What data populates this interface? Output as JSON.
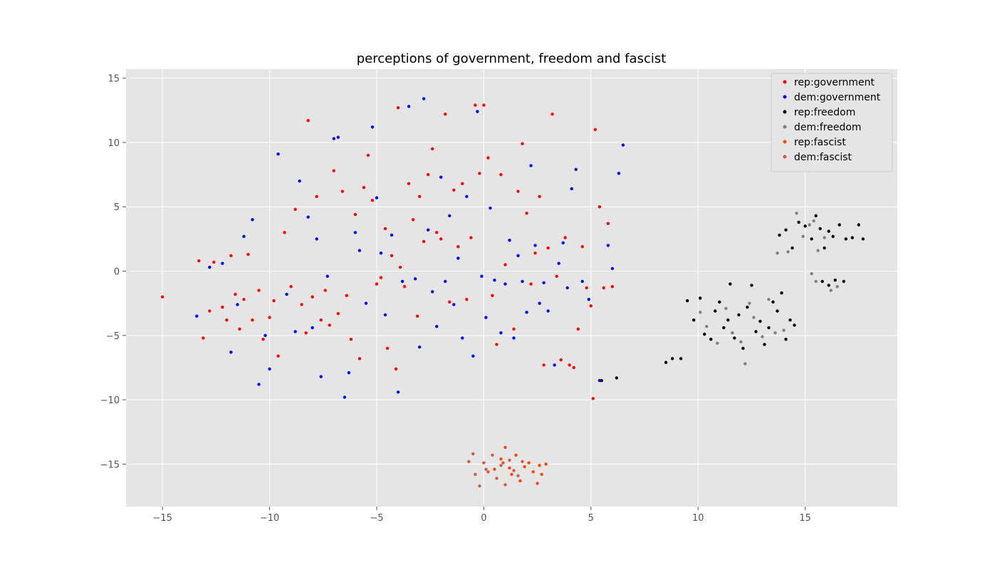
{
  "chart_data": {
    "type": "scatter",
    "title": "perceptions of government, freedom and fascist",
    "xlabel": "",
    "ylabel": "",
    "xlim": [
      -16.7,
      19.3
    ],
    "ylim": [
      -18.3,
      15.7
    ],
    "xticks": [
      -15,
      -10,
      -5,
      0,
      5,
      10,
      15
    ],
    "yticks": [
      -15,
      -10,
      -5,
      0,
      5,
      10,
      15
    ],
    "grid": true,
    "legend_position": "top-right",
    "series": [
      {
        "name": "rep:government",
        "color": "#ff0000",
        "points": [
          [
            -15,
            -2
          ],
          [
            -13.3,
            0.8
          ],
          [
            -13.1,
            -5.2
          ],
          [
            -12.8,
            -3.1
          ],
          [
            -12.6,
            0.7
          ],
          [
            -12.2,
            -2.8
          ],
          [
            -12,
            -3.8
          ],
          [
            -11.8,
            1.2
          ],
          [
            -11.6,
            -1.8
          ],
          [
            -11.4,
            -4.5
          ],
          [
            -11.2,
            -2.2
          ],
          [
            -11,
            1.3
          ],
          [
            -10.8,
            -3.8
          ],
          [
            -10.5,
            -1.5
          ],
          [
            -10.3,
            -5.3
          ],
          [
            -10,
            -3.6
          ],
          [
            -9.8,
            -2.3
          ],
          [
            -9.6,
            -6.6
          ],
          [
            -9.3,
            3
          ],
          [
            -9,
            -1.2
          ],
          [
            -8.8,
            4.8
          ],
          [
            -8.5,
            -2.6
          ],
          [
            -8.3,
            -4.8
          ],
          [
            -8.2,
            11.7
          ],
          [
            -8,
            -2
          ],
          [
            -7.8,
            5.8
          ],
          [
            -7.6,
            -3.8
          ],
          [
            -7.4,
            -1.5
          ],
          [
            -7.2,
            -4.2
          ],
          [
            -7,
            7.8
          ],
          [
            -6.8,
            -3.3
          ],
          [
            -6.6,
            6.2
          ],
          [
            -6.4,
            -1.9
          ],
          [
            -6.2,
            -5.3
          ],
          [
            -6,
            4.4
          ],
          [
            -5.8,
            -6.8
          ],
          [
            -5.6,
            6.5
          ],
          [
            -5.4,
            9
          ],
          [
            -5.2,
            5.5
          ],
          [
            -5,
            -1
          ],
          [
            -4.8,
            -0.5
          ],
          [
            -4.6,
            3.3
          ],
          [
            -4.5,
            -6
          ],
          [
            -4.3,
            1.2
          ],
          [
            -4.1,
            -7.6
          ],
          [
            -4,
            12.7
          ],
          [
            -3.9,
            0.3
          ],
          [
            -3.7,
            -1.2
          ],
          [
            -3.5,
            6.8
          ],
          [
            -3.3,
            4
          ],
          [
            -3.1,
            -3.5
          ],
          [
            -3,
            5.8
          ],
          [
            -2.8,
            2.3
          ],
          [
            -2.6,
            7.5
          ],
          [
            -2.4,
            9.5
          ],
          [
            -2.2,
            3
          ],
          [
            -2,
            2.5
          ],
          [
            -1.8,
            12.2
          ],
          [
            -1.6,
            -2.4
          ],
          [
            -1.4,
            6.3
          ],
          [
            -1.2,
            1.9
          ],
          [
            -1,
            6.8
          ],
          [
            -0.8,
            -2.2
          ],
          [
            -0.6,
            2.6
          ],
          [
            -0.4,
            12.9
          ],
          [
            -0.2,
            7.6
          ],
          [
            0,
            12.9
          ],
          [
            0.2,
            8.8
          ],
          [
            0.4,
            -1.9
          ],
          [
            0.6,
            -5.7
          ],
          [
            0.8,
            7.5
          ],
          [
            1,
            0.5
          ],
          [
            1.2,
            2.4
          ],
          [
            1.4,
            -4.5
          ],
          [
            1.6,
            6.2
          ],
          [
            1.8,
            9.9
          ],
          [
            2,
            4.5
          ],
          [
            2.2,
            -1
          ],
          [
            2.4,
            1.4
          ],
          [
            2.6,
            5.8
          ],
          [
            2.8,
            -7.3
          ],
          [
            3,
            1.8
          ],
          [
            3.2,
            12.2
          ],
          [
            3.4,
            -0.4
          ],
          [
            3.6,
            -6.9
          ],
          [
            3.8,
            2.6
          ],
          [
            4,
            -7.3
          ],
          [
            4.2,
            -7.5
          ],
          [
            4.4,
            -4.5
          ],
          [
            4.6,
            1.9
          ],
          [
            4.8,
            -1.3
          ],
          [
            5,
            -2.7
          ],
          [
            5.2,
            11
          ],
          [
            5.4,
            5
          ],
          [
            5.6,
            -1.3
          ],
          [
            5.8,
            3.7
          ],
          [
            6,
            -1.2
          ],
          [
            5.1,
            -9.9
          ]
        ]
      },
      {
        "name": "dem:government",
        "color": "#0000ff",
        "points": [
          [
            -13.4,
            -3.5
          ],
          [
            -12.8,
            0.3
          ],
          [
            -12.2,
            0.6
          ],
          [
            -11.8,
            -6.3
          ],
          [
            -11.5,
            -2.6
          ],
          [
            -11.2,
            2.7
          ],
          [
            -10.8,
            4
          ],
          [
            -10.5,
            -8.8
          ],
          [
            -10.2,
            -5
          ],
          [
            -10,
            -7.6
          ],
          [
            -9.6,
            9.1
          ],
          [
            -9.2,
            -1.8
          ],
          [
            -8.8,
            -4.7
          ],
          [
            -8.6,
            7
          ],
          [
            -8.2,
            4.2
          ],
          [
            -8,
            -4.4
          ],
          [
            -7.8,
            2.5
          ],
          [
            -7.6,
            -8.2
          ],
          [
            -7.3,
            -0.4
          ],
          [
            -7,
            10.3
          ],
          [
            -6.8,
            10.4
          ],
          [
            -6.5,
            -9.8
          ],
          [
            -6.3,
            -7.9
          ],
          [
            -6,
            3
          ],
          [
            -5.8,
            1.6
          ],
          [
            -5.5,
            -2.5
          ],
          [
            -5.2,
            11.2
          ],
          [
            -5,
            5.7
          ],
          [
            -4.8,
            1.4
          ],
          [
            -4.6,
            -3.4
          ],
          [
            -4.3,
            2.8
          ],
          [
            -4,
            -9.4
          ],
          [
            -3.8,
            -0.8
          ],
          [
            -3.5,
            12.8
          ],
          [
            -3.2,
            -0.6
          ],
          [
            -3,
            -5.9
          ],
          [
            -2.8,
            13.4
          ],
          [
            -2.6,
            3.2
          ],
          [
            -2.4,
            -1.6
          ],
          [
            -2.2,
            -4.3
          ],
          [
            -2,
            7.3
          ],
          [
            -1.8,
            -0.8
          ],
          [
            -1.6,
            4.3
          ],
          [
            -1.4,
            -2.6
          ],
          [
            -1.2,
            1
          ],
          [
            -1,
            -5.2
          ],
          [
            -0.8,
            5.8
          ],
          [
            -0.5,
            -6.6
          ],
          [
            -0.3,
            12.4
          ],
          [
            -0.1,
            -0.4
          ],
          [
            0.1,
            -3.6
          ],
          [
            0.3,
            4.9
          ],
          [
            0.5,
            -0.7
          ],
          [
            0.8,
            -4.8
          ],
          [
            1,
            -1
          ],
          [
            1.2,
            2.4
          ],
          [
            1.4,
            -5.2
          ],
          [
            1.6,
            1.2
          ],
          [
            1.8,
            -0.8
          ],
          [
            2,
            -3.2
          ],
          [
            2.2,
            8.2
          ],
          [
            2.4,
            2
          ],
          [
            2.6,
            -2.5
          ],
          [
            2.8,
            -0.9
          ],
          [
            3,
            -3.1
          ],
          [
            3.3,
            -7.3
          ],
          [
            3.5,
            0.6
          ],
          [
            3.7,
            2.2
          ],
          [
            3.9,
            -1.3
          ],
          [
            4.1,
            6.4
          ],
          [
            4.3,
            7.9
          ],
          [
            4.6,
            -0.8
          ],
          [
            4.9,
            -2.2
          ],
          [
            5.4,
            -8.5
          ],
          [
            5.8,
            2
          ],
          [
            6,
            0.2
          ],
          [
            6.3,
            7.6
          ],
          [
            6.5,
            9.8
          ]
        ]
      },
      {
        "name": "rep:freedom",
        "color": "#000000",
        "points": [
          [
            6.2,
            -8.3
          ],
          [
            5.5,
            -8.5
          ],
          [
            8.5,
            -7.1
          ],
          [
            8.8,
            -6.8
          ],
          [
            9.2,
            -6.8
          ],
          [
            9.5,
            -2.3
          ],
          [
            9.8,
            -3.8
          ],
          [
            10.1,
            -2.1
          ],
          [
            10.3,
            -4.9
          ],
          [
            10.6,
            -5.3
          ],
          [
            10.8,
            -3.1
          ],
          [
            11,
            -2.4
          ],
          [
            11.2,
            -4.4
          ],
          [
            11.4,
            -3.8
          ],
          [
            11.5,
            -1
          ],
          [
            11.7,
            -5.2
          ],
          [
            11.9,
            -3.4
          ],
          [
            12.1,
            -6
          ],
          [
            12.3,
            -2.8
          ],
          [
            12.5,
            -1.1
          ],
          [
            12.7,
            -4.7
          ],
          [
            12.9,
            -3.9
          ],
          [
            13.1,
            -5.7
          ],
          [
            13.3,
            -4.4
          ],
          [
            13.5,
            -2.4
          ],
          [
            13.7,
            -3.1
          ],
          [
            13.9,
            -1.7
          ],
          [
            14.1,
            -5.3
          ],
          [
            14.3,
            -3.8
          ],
          [
            14.5,
            -4.2
          ],
          [
            13.8,
            2.8
          ],
          [
            14.1,
            3.2
          ],
          [
            14.4,
            1.8
          ],
          [
            14.7,
            3.8
          ],
          [
            15,
            3.5
          ],
          [
            15.3,
            2.5
          ],
          [
            15.5,
            4.3
          ],
          [
            15.7,
            3.3
          ],
          [
            15.9,
            1.8
          ],
          [
            16.1,
            3.1
          ],
          [
            16.3,
            2.7
          ],
          [
            16.6,
            3.6
          ],
          [
            16.9,
            2.5
          ],
          [
            17.2,
            2.6
          ],
          [
            17.5,
            3.6
          ],
          [
            17.7,
            2.5
          ],
          [
            15.8,
            -0.8
          ],
          [
            16.1,
            -1.1
          ],
          [
            16.4,
            -0.7
          ],
          [
            16.8,
            -0.8
          ]
        ]
      },
      {
        "name": "dem:freedom",
        "color": "#808080",
        "points": [
          [
            10.1,
            -3.2
          ],
          [
            10.4,
            -4.3
          ],
          [
            10.9,
            -5.6
          ],
          [
            11.3,
            -2.9
          ],
          [
            11.6,
            -4.8
          ],
          [
            12,
            -5.5
          ],
          [
            12.2,
            -7.2
          ],
          [
            12.4,
            -2.5
          ],
          [
            12.6,
            -3.6
          ],
          [
            13,
            -5.1
          ],
          [
            13.3,
            -2.2
          ],
          [
            13.6,
            -4.8
          ],
          [
            14,
            -4.6
          ],
          [
            13.7,
            1.4
          ],
          [
            14.2,
            1.5
          ],
          [
            14.6,
            4.5
          ],
          [
            14.9,
            2.7
          ],
          [
            15.2,
            3.6
          ],
          [
            15.4,
            3.9
          ],
          [
            15.6,
            1.6
          ],
          [
            15.9,
            2.6
          ],
          [
            15.3,
            -0.2
          ],
          [
            15.5,
            -0.8
          ],
          [
            16.2,
            -1.5
          ],
          [
            16.5,
            -1.2
          ]
        ]
      },
      {
        "name": "rep:fascist",
        "color": "#ff4500",
        "points": [
          [
            0.5,
            -15.4
          ],
          [
            0.8,
            -14.6
          ],
          [
            1,
            -13.7
          ],
          [
            1.3,
            -15.8
          ],
          [
            1.5,
            -14.3
          ],
          [
            1.7,
            -16.3
          ],
          [
            1.9,
            -15.2
          ],
          [
            2.1,
            -14.9
          ],
          [
            2.3,
            -15.6
          ],
          [
            2.5,
            -16.5
          ],
          [
            2.7,
            -15.8
          ],
          [
            2.9,
            -15
          ],
          [
            2.6,
            -15.1
          ],
          [
            1.2,
            -15.3
          ]
        ]
      },
      {
        "name": "dem:fascist",
        "color": "#cd5c45",
        "points": [
          [
            -0.7,
            -14.8
          ],
          [
            -0.4,
            -15.8
          ],
          [
            -0.2,
            -16.7
          ],
          [
            0,
            -14.9
          ],
          [
            0.2,
            -15.6
          ],
          [
            0.4,
            -14.3
          ],
          [
            0.6,
            -16.1
          ],
          [
            0.8,
            -15.1
          ],
          [
            1,
            -16.6
          ],
          [
            1.2,
            -14.7
          ],
          [
            1.4,
            -15.5
          ],
          [
            1.6,
            -15.9
          ],
          [
            1.8,
            -14.8
          ],
          [
            -0.5,
            -14.2
          ],
          [
            0.1,
            -15.4
          ],
          [
            0.9,
            -14.9
          ]
        ]
      }
    ]
  }
}
